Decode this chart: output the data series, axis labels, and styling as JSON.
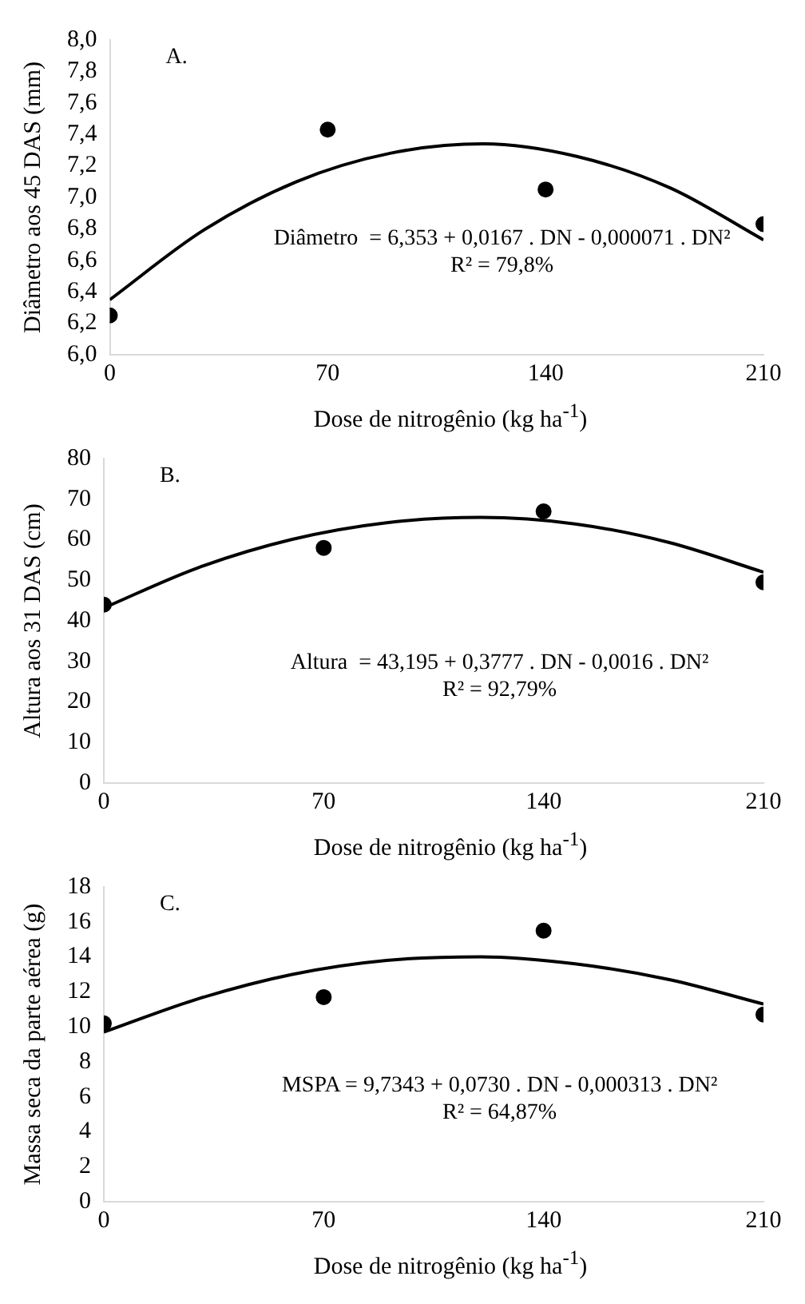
{
  "chart_data": [
    {
      "type": "scatter",
      "xlabel": "Dose de nitrogênio (kg ha$^{-1}$)",
      "ylabel": "Diâmetro aos 45 DAS (mm)",
      "annotations": [
        "A.",
        "Diâmetro  = 6,353 + 0,0167 . DN - 0,000071 . DN²",
        "R² = 79,8%"
      ],
      "x": [
        0,
        70,
        140,
        210
      ],
      "marker": "circle",
      "series": [
        {
          "color": "#000000",
          "values": [
            6.25,
            7.43,
            7.05,
            6.83
          ]
        },
        {
          "type": "line",
          "marker": "none",
          "color": "#000000",
          "x": [
            0,
            30,
            60,
            90,
            120,
            150,
            180,
            210
          ],
          "values": [
            6.35,
            6.79,
            7.1,
            7.28,
            7.34,
            7.26,
            7.06,
            6.73
          ]
        }
      ],
      "xlim": [
        0,
        210
      ],
      "xticks": [
        0,
        70,
        140,
        210
      ],
      "ylim": [
        6,
        8
      ],
      "yticks": [
        {
          "value": 6,
          "label": "6,0"
        },
        {
          "value": 6.2,
          "label": "6,2"
        },
        {
          "value": 6.4,
          "label": "6,4"
        },
        {
          "value": 6.6,
          "label": "6,6"
        },
        {
          "value": 6.8,
          "label": "6,8"
        },
        {
          "value": 7,
          "label": "7,0"
        },
        {
          "value": 7.2,
          "label": "7,2"
        },
        {
          "value": 7.4,
          "label": "7,4"
        },
        {
          "value": 7.6,
          "label": "7,6"
        },
        {
          "value": 7.8,
          "label": "7,8"
        },
        {
          "value": 8,
          "label": "8,0"
        }
      ]
    },
    {
      "type": "scatter",
      "xlabel": "Dose de nitrogênio (kg ha$^{-1}$)",
      "ylabel": "Altura aos 31 DAS (cm)",
      "annotations": [
        "B.",
        "Altura  = 43,195 + 0,3777 . DN - 0,0016 . DN²",
        "R² = 92,79%"
      ],
      "x": [
        0,
        70,
        140,
        210
      ],
      "marker": "circle",
      "series": [
        {
          "color": "#000000",
          "values": [
            44,
            58,
            67,
            49.5
          ]
        },
        {
          "type": "line",
          "marker": "none",
          "color": "#000000",
          "x": [
            0,
            30,
            60,
            90,
            120,
            150,
            180,
            210
          ],
          "values": [
            43.2,
            53.1,
            60.1,
            64.2,
            65.5,
            63.9,
            59.3,
            52
          ]
        }
      ],
      "xlim": [
        0,
        210
      ],
      "xticks": [
        0,
        70,
        140,
        210
      ],
      "ylim": [
        0,
        80
      ],
      "yticks": [
        0,
        10,
        20,
        30,
        40,
        50,
        60,
        70,
        80
      ]
    },
    {
      "type": "scatter",
      "xlabel": "Dose de nitrogênio (kg ha$^{-1}$)",
      "ylabel": "Massa seca da parte aérea (g)",
      "annotations": [
        "C.",
        "MSPA = 9,7343 + 0,0730 . DN - 0,000313 . DN²",
        "R² = 64,87%"
      ],
      "x": [
        0,
        70,
        140,
        210
      ],
      "marker": "circle",
      "series": [
        {
          "color": "#000000",
          "values": [
            10.2,
            11.7,
            15.5,
            10.7
          ]
        },
        {
          "type": "line",
          "marker": "none",
          "color": "#000000",
          "x": [
            0,
            30,
            60,
            90,
            120,
            150,
            180,
            210
          ],
          "values": [
            9.7,
            11.6,
            13,
            13.8,
            14,
            13.6,
            12.7,
            11.3
          ]
        }
      ],
      "xlim": [
        0,
        210
      ],
      "xticks": [
        0,
        70,
        140,
        210
      ],
      "ylim": [
        0,
        18
      ],
      "yticks": [
        0,
        2,
        4,
        6,
        8,
        10,
        12,
        14,
        16,
        18
      ]
    }
  ]
}
